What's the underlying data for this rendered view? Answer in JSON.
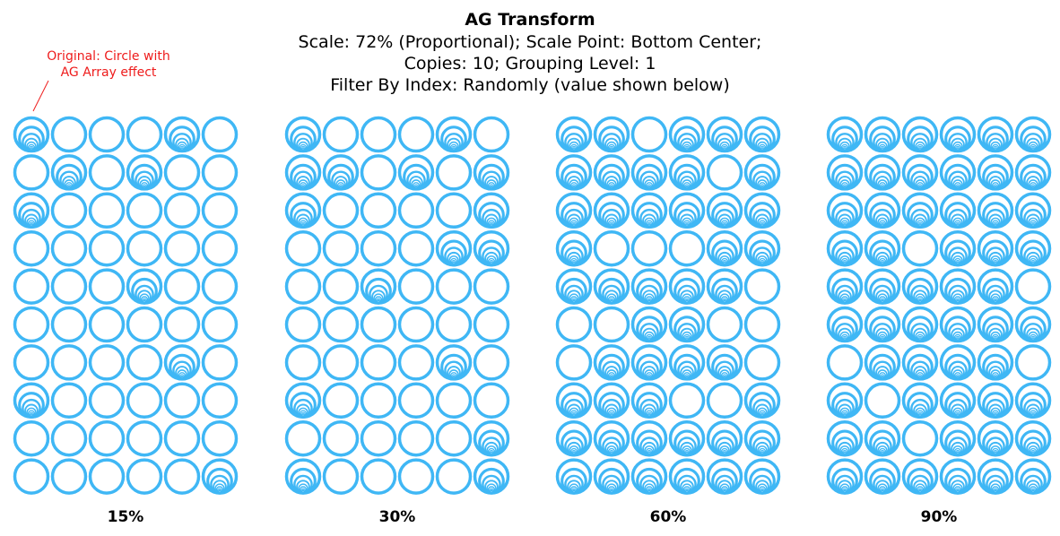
{
  "title": "AG Transform",
  "subtitle_lines": [
    "Scale: 72% (Proportional); Scale Point: Bottom Center;",
    "Copies: 10; Grouping Level: 1",
    "Filter By Index: Randomly (value shown below)"
  ],
  "annotation_lines": [
    "Original: Circle with",
    "AG Array effect"
  ],
  "colors": {
    "circle_stroke": "#3fb7f5",
    "annotation": "#ee1c1c",
    "text": "#000000"
  },
  "grid": {
    "rows": 10,
    "cols": 6
  },
  "panels": [
    {
      "label": "15%",
      "pattern": [
        "100010",
        "010100",
        "100000",
        "000000",
        "000100",
        "000000",
        "000010",
        "100000",
        "000000",
        "000001"
      ]
    },
    {
      "label": "30%",
      "pattern": [
        "100010",
        "110101",
        "100001",
        "000011",
        "001000",
        "000000",
        "000010",
        "100000",
        "000001",
        "100001"
      ]
    },
    {
      "label": "60%",
      "pattern": [
        "110111",
        "111101",
        "111111",
        "100011",
        "111110",
        "001100",
        "011110",
        "111001",
        "111111",
        "111111"
      ]
    },
    {
      "label": "90%",
      "pattern": [
        "111111",
        "111111",
        "111111",
        "110111",
        "111110",
        "111111",
        "011110",
        "101111",
        "110111",
        "111111"
      ]
    }
  ]
}
